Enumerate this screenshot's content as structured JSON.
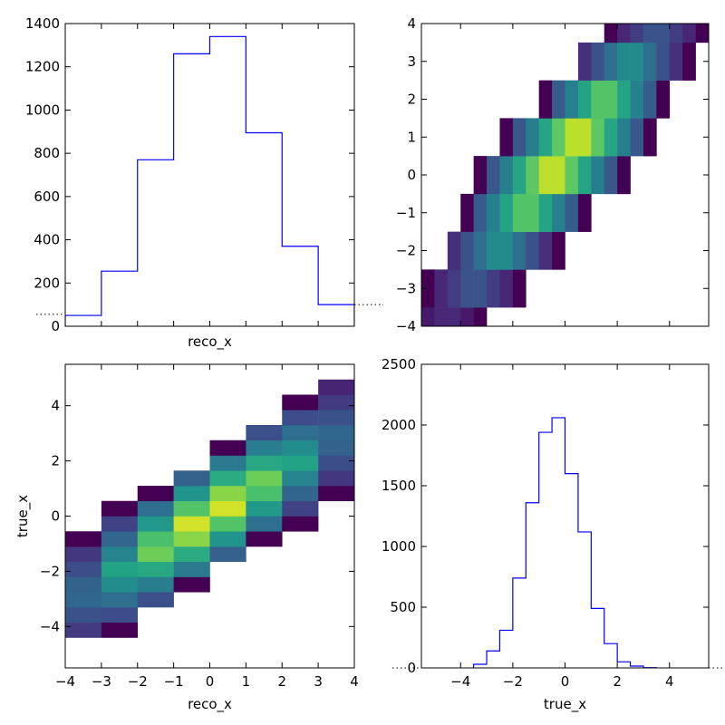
{
  "chart_data": [
    {
      "type": "histogram",
      "panel": "top-left",
      "xlabel": "reco_x",
      "ylabel": "",
      "ylim": [
        0,
        1400
      ],
      "y_ticks": [
        0,
        200,
        400,
        600,
        800,
        1000,
        1200,
        1400
      ],
      "y_tick_labels": [
        "0",
        "200",
        "400",
        "600",
        "800",
        "1000",
        "1200",
        "1400"
      ],
      "x_tick_labels_hidden": true,
      "bins": [
        -4,
        -3,
        -2,
        -1,
        0,
        1,
        2,
        3,
        4
      ],
      "values": [
        50,
        255,
        770,
        1260,
        1340,
        895,
        370,
        100
      ],
      "color": "#0000ff",
      "overflow_markers": {
        "underflow": 55,
        "overflow": 100
      }
    },
    {
      "type": "heatmap",
      "panel": "top-right",
      "xlabel": "",
      "ylabel": "",
      "x_tick_labels_hidden": true,
      "y_ticks": [
        -4,
        -3,
        -2,
        -1,
        0,
        1,
        2,
        3,
        4
      ],
      "y_tick_labels": [
        "−4",
        "−3",
        "−2",
        "−1",
        "0",
        "1",
        "2",
        "3",
        "4"
      ],
      "colormap": "viridis"
    },
    {
      "type": "heatmap",
      "panel": "bottom-left",
      "xlabel": "reco_x",
      "ylabel": "true_x",
      "x_ticks": [
        -4,
        -3,
        -2,
        -1,
        0,
        1,
        2,
        3,
        4
      ],
      "x_tick_labels": [
        "−4",
        "−3",
        "−2",
        "−1",
        "0",
        "1",
        "2",
        "3",
        "4"
      ],
      "y_ticks": [
        -4,
        -2,
        0,
        2,
        4
      ],
      "y_tick_labels": [
        "−4",
        "−2",
        "0",
        "2",
        "4"
      ],
      "colormap": "viridis"
    },
    {
      "type": "histogram",
      "panel": "bottom-right",
      "xlabel": "true_x",
      "ylabel": "",
      "ylim": [
        0,
        2500
      ],
      "y_ticks": [
        0,
        500,
        1000,
        1500,
        2000,
        2500
      ],
      "y_tick_labels": [
        "0",
        "500",
        "1000",
        "1500",
        "2000",
        "2500"
      ],
      "x_ticks": [
        -4,
        -2,
        0,
        2,
        4
      ],
      "x_tick_labels": [
        "−4",
        "−2",
        "0",
        "2",
        "4"
      ],
      "bins": [
        -3.5,
        -3,
        -2.5,
        -2,
        -1.5,
        -1,
        -0.5,
        0,
        0.5,
        1,
        1.5,
        2,
        2.5,
        3,
        3.5
      ],
      "values": [
        30,
        140,
        310,
        740,
        1360,
        1940,
        2060,
        1600,
        1120,
        490,
        200,
        50,
        15,
        2
      ],
      "color": "#0000ff"
    }
  ]
}
